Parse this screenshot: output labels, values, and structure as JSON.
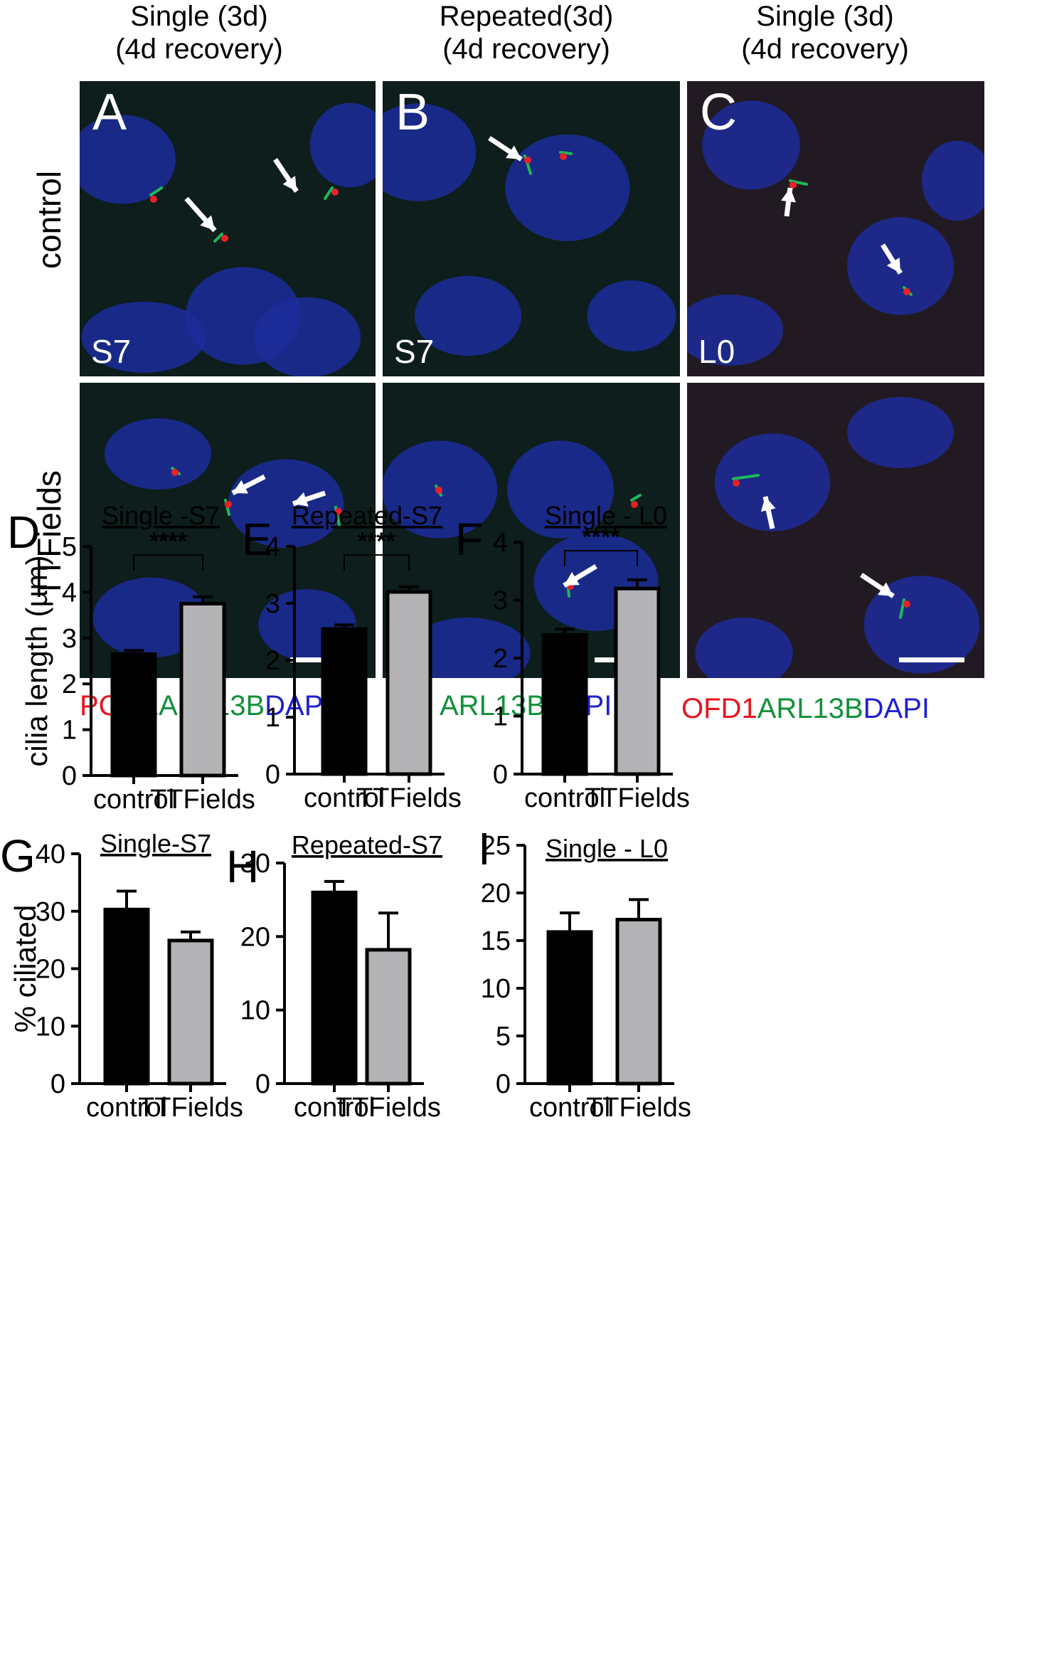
{
  "columns": [
    {
      "line1": "Single (3d)",
      "line2": "(4d recovery)"
    },
    {
      "line1": "Repeated(3d)",
      "line2": "(4d recovery)"
    },
    {
      "line1": "Single (3d)",
      "line2": "(4d recovery)"
    }
  ],
  "rows": [
    "control",
    "TTFields"
  ],
  "panels": [
    {
      "letter": "A",
      "cell_line": "S7"
    },
    {
      "letter": "B",
      "cell_line": "S7"
    },
    {
      "letter": "C",
      "cell_line": "L0"
    }
  ],
  "legends": [
    [
      {
        "text": "PCM1",
        "color": "#e8141e"
      },
      {
        "text": "ARL13B",
        "color": "#12913a"
      },
      {
        "text": "DAPI",
        "color": "#1f1fd0"
      }
    ],
    [
      {
        "text": "ARL13B",
        "color": "#12913a"
      },
      {
        "text": "DAPI",
        "color": "#1f1fd0"
      }
    ],
    [
      {
        "text": "OFD1",
        "color": "#e8141e"
      },
      {
        "text": "ARL13B",
        "color": "#12913a"
      },
      {
        "text": "DAPI",
        "color": "#1f1fd0"
      }
    ]
  ],
  "colors": {
    "control_bar": "#000000",
    "ttfields_bar": "#b3b3b6",
    "nucleus": "#1c2c9a",
    "cilium": "#1db858",
    "centriole": "#e8202a"
  },
  "chart_data": [
    {
      "type": "bar",
      "letter": "D",
      "title": "Single -S7",
      "ylabel": "cilia length (µm)",
      "categories": [
        "control",
        "TTFields"
      ],
      "values": [
        2.65,
        3.75
      ],
      "errors": [
        0.08,
        0.15
      ],
      "ylim": [
        0,
        5
      ],
      "ticks": [
        0,
        1,
        2,
        3,
        4,
        5
      ],
      "significance": "****"
    },
    {
      "type": "bar",
      "letter": "E",
      "title": "Repeated-S7",
      "ylabel": "",
      "categories": [
        "control",
        "TTFields"
      ],
      "values": [
        2.55,
        3.2
      ],
      "errors": [
        0.07,
        0.09
      ],
      "ylim": [
        0,
        4
      ],
      "ticks": [
        0,
        1,
        2,
        3,
        4
      ],
      "significance": "****"
    },
    {
      "type": "bar",
      "letter": "F",
      "title": "Single - L0",
      "ylabel": "",
      "categories": [
        "control",
        "TTFields"
      ],
      "values": [
        2.4,
        3.2
      ],
      "errors": [
        0.1,
        0.15
      ],
      "ylim": [
        0,
        4
      ],
      "ticks": [
        0,
        1,
        2,
        3,
        4
      ],
      "significance": "****"
    },
    {
      "type": "bar",
      "letter": "G",
      "title": "Single-S7",
      "ylabel": "% ciliated",
      "categories": [
        "control",
        "TTFields"
      ],
      "values": [
        30.3,
        24.9
      ],
      "errors": [
        3.2,
        1.5
      ],
      "ylim": [
        0,
        40
      ],
      "ticks": [
        0,
        10,
        20,
        30,
        40
      ],
      "significance": ""
    },
    {
      "type": "bar",
      "letter": "H",
      "title": "Repeated-S7",
      "ylabel": "",
      "categories": [
        "control",
        "TTFields"
      ],
      "values": [
        26,
        18.2
      ],
      "errors": [
        1.5,
        5
      ],
      "ylim": [
        0,
        30
      ],
      "ticks": [
        0,
        10,
        20,
        30
      ],
      "significance": ""
    },
    {
      "type": "bar",
      "letter": "I",
      "title": "Single - L0",
      "ylabel": "",
      "categories": [
        "control",
        "TTFields"
      ],
      "values": [
        15.9,
        17.2
      ],
      "errors": [
        2,
        2.1
      ],
      "ylim": [
        0,
        25
      ],
      "ticks": [
        0,
        5,
        10,
        15,
        20,
        25
      ],
      "significance": ""
    }
  ]
}
